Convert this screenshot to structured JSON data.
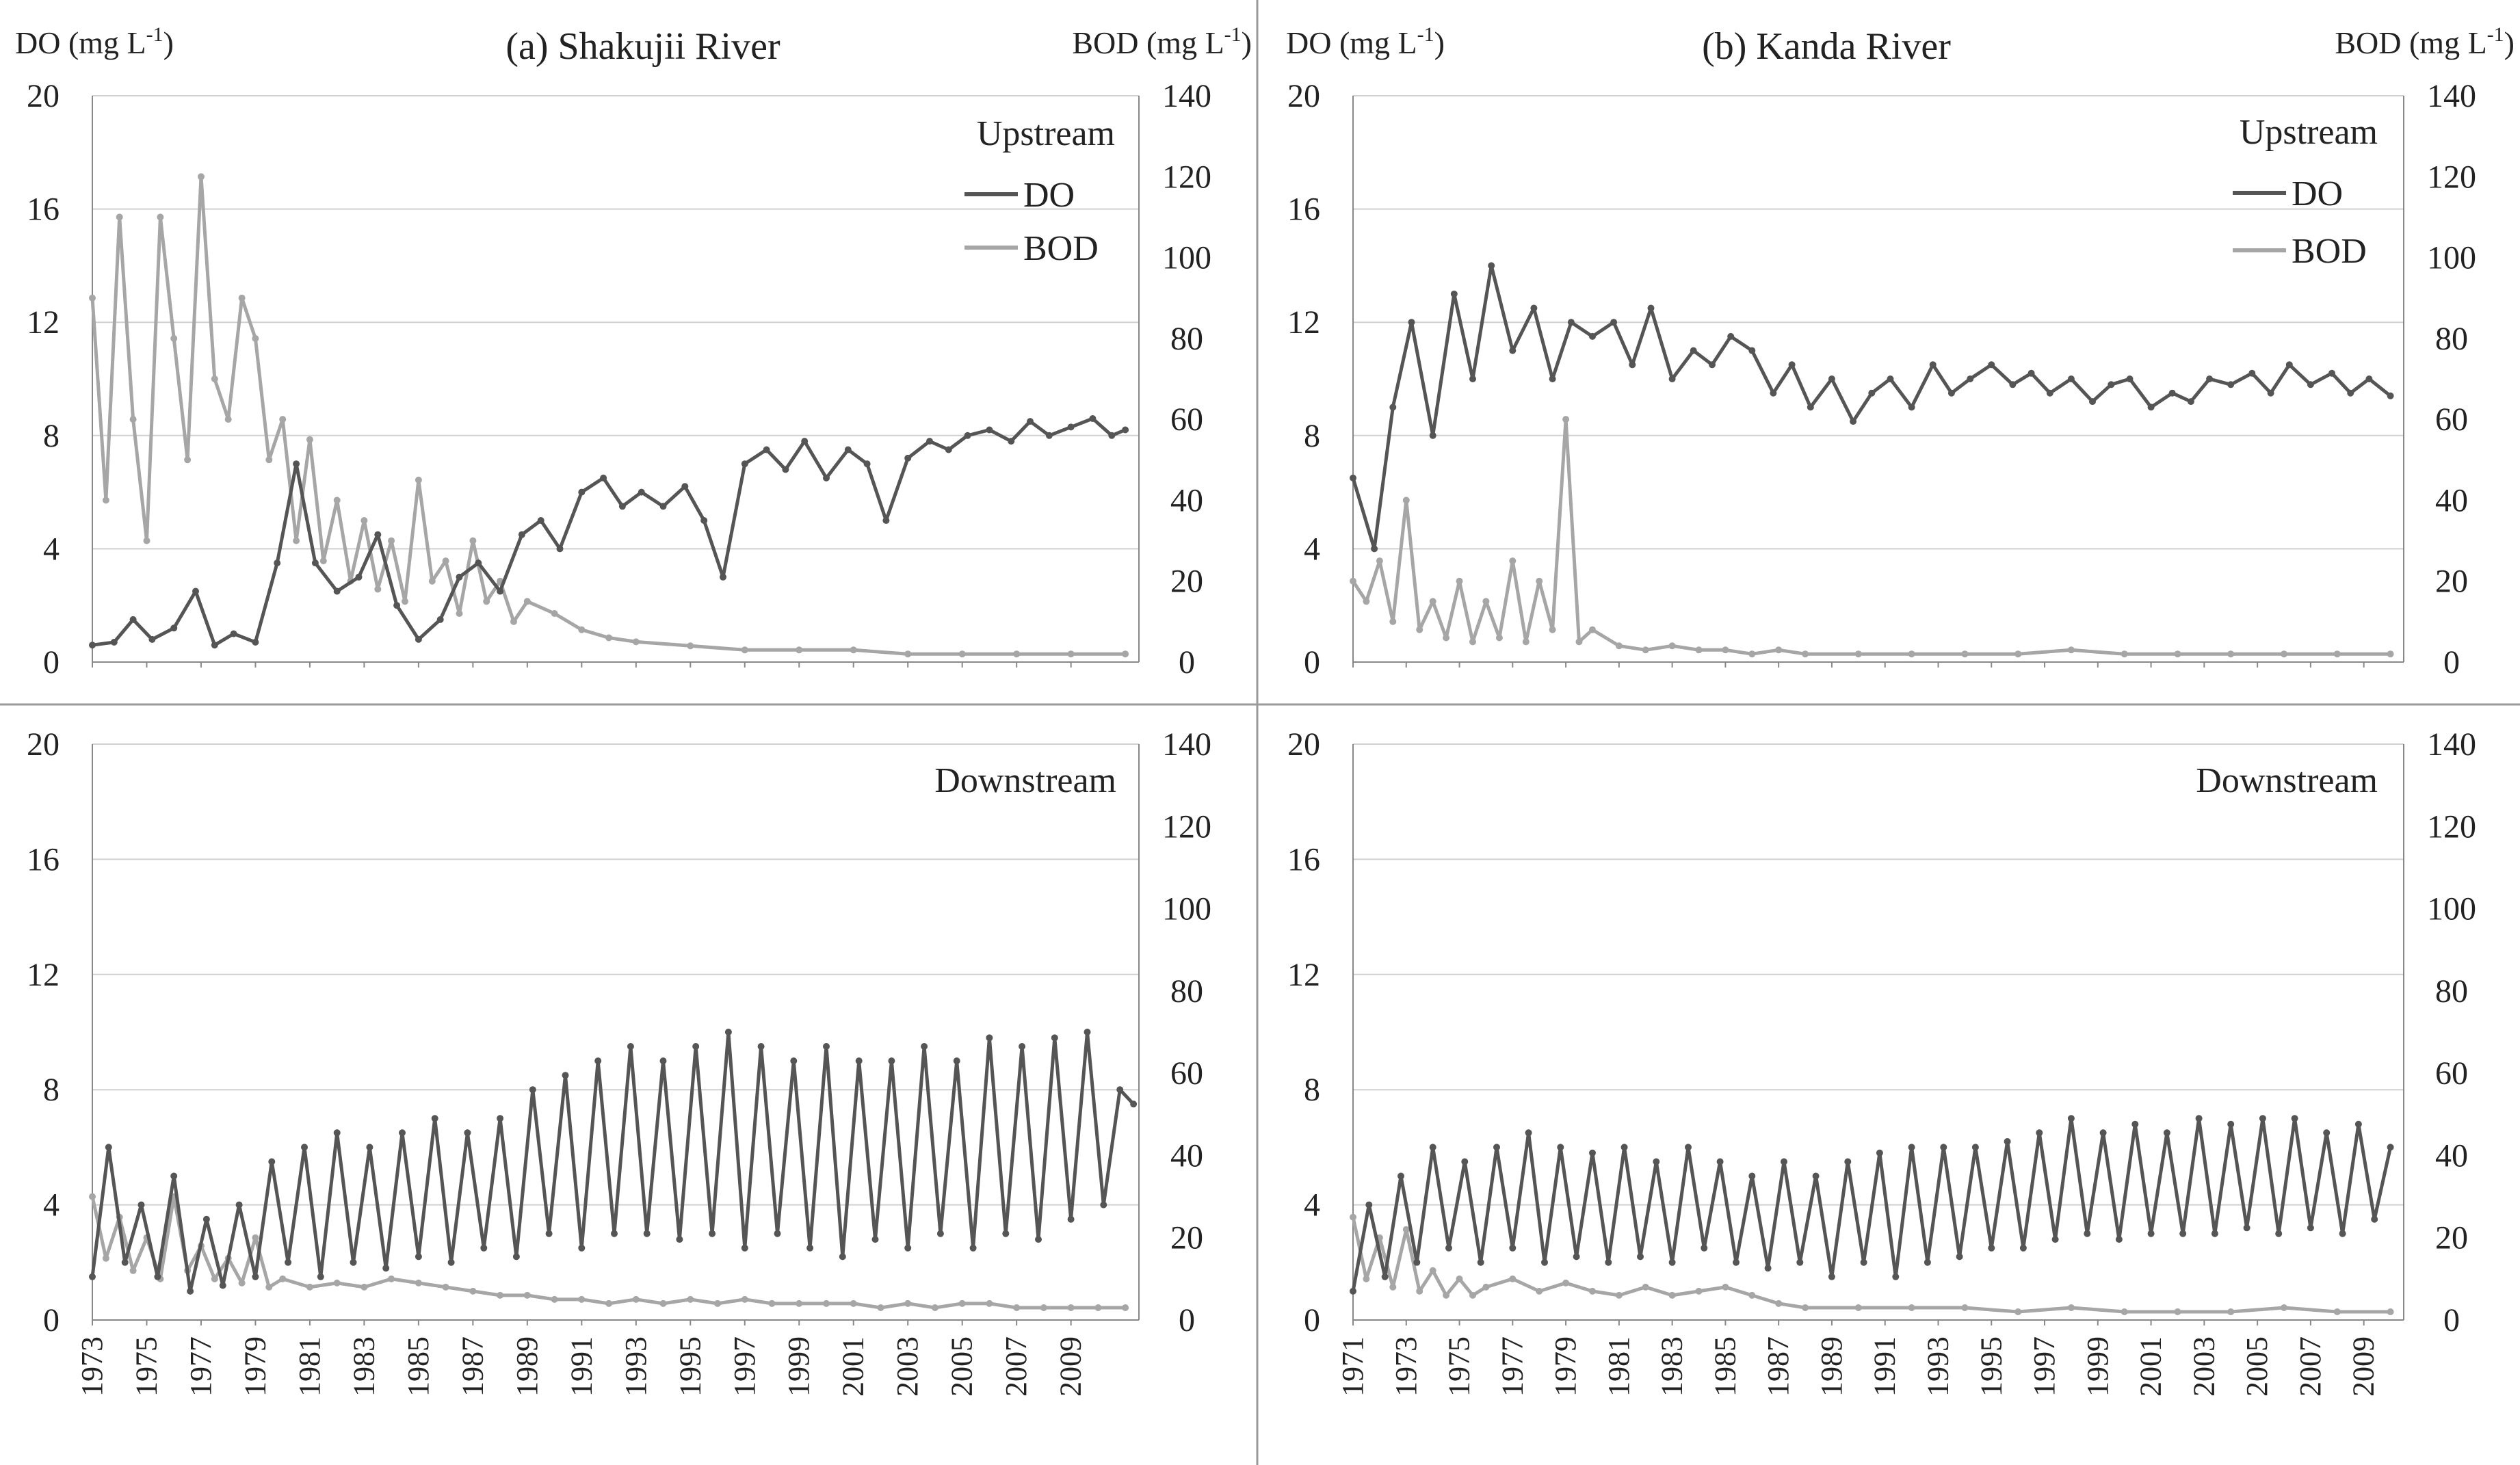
{
  "colors": {
    "do": "#555555",
    "bod": "#a6a6a6",
    "grid": "#d0d0d0",
    "axis": "#888888",
    "divider": "#9a9a9a"
  },
  "chart_data": [
    {
      "type": "line",
      "id": "a-up",
      "title": "(a) Shakujii River",
      "ylabel_left": "DO (mg L-1)",
      "ylabel_left_main": "DO  (mg L",
      "ylabel_left_sup": "-1",
      "ylabel_left_end": ")",
      "ylabel_right": "BOD (mg L-1)",
      "ylabel_right_main": "BOD  (mg L",
      "ylabel_right_sup": "-1",
      "ylabel_right_end": ")",
      "panel_label": "Upstream",
      "legend": [
        "DO",
        "BOD"
      ],
      "ylim": [
        0,
        20
      ],
      "yticks": [
        0,
        4,
        8,
        12,
        16,
        20
      ],
      "ylim2": [
        0,
        140
      ],
      "yticks2": [
        0,
        20,
        40,
        60,
        80,
        100,
        120,
        140
      ],
      "xlim": [
        1973,
        2011.5
      ],
      "xticks": [
        "1973",
        "1975",
        "1977",
        "1979",
        "1981",
        "1983",
        "1985",
        "1987",
        "1989",
        "1991",
        "1993",
        "1995",
        "1997",
        "1999",
        "2001",
        "2003",
        "2005",
        "2007",
        "2009"
      ],
      "series": [
        {
          "name": "DO",
          "axis": "left",
          "x": [
            1973.0,
            1973.8,
            1974.5,
            1975.2,
            1976.0,
            1976.8,
            1977.5,
            1978.2,
            1979.0,
            1979.8,
            1980.5,
            1981.2,
            1982.0,
            1982.8,
            1983.5,
            1984.2,
            1985.0,
            1985.8,
            1986.5,
            1987.2,
            1988.0,
            1988.8,
            1989.5,
            1990.2,
            1991.0,
            1991.8,
            1992.5,
            1993.2,
            1994.0,
            1994.8,
            1995.5,
            1996.2,
            1997.0,
            1997.8,
            1998.5,
            1999.2,
            2000.0,
            2000.8,
            2001.5,
            2002.2,
            2003.0,
            2003.8,
            2004.5,
            2005.2,
            2006.0,
            2006.8,
            2007.5,
            2008.2,
            2009.0,
            2009.8,
            2010.5,
            2011.0
          ],
          "y": [
            0.6,
            0.7,
            1.5,
            0.8,
            1.2,
            2.5,
            0.6,
            1.0,
            0.7,
            3.5,
            7.0,
            3.5,
            2.5,
            3.0,
            4.5,
            2.0,
            0.8,
            1.5,
            3.0,
            3.5,
            2.5,
            4.5,
            5.0,
            4.0,
            6.0,
            6.5,
            5.5,
            6.0,
            5.5,
            6.2,
            5.0,
            3.0,
            7.0,
            7.5,
            6.8,
            7.8,
            6.5,
            7.5,
            7.0,
            5.0,
            7.2,
            7.8,
            7.5,
            8.0,
            8.2,
            7.8,
            8.5,
            8.0,
            8.3,
            8.6,
            8.0,
            8.2
          ]
        },
        {
          "name": "BOD",
          "axis": "right",
          "x": [
            1973.0,
            1973.5,
            1974.0,
            1974.5,
            1975.0,
            1975.5,
            1976.0,
            1976.5,
            1977.0,
            1977.5,
            1978.0,
            1978.5,
            1979.0,
            1979.5,
            1980.0,
            1980.5,
            1981.0,
            1981.5,
            1982.0,
            1982.5,
            1983.0,
            1983.5,
            1984.0,
            1984.5,
            1985.0,
            1985.5,
            1986.0,
            1986.5,
            1987.0,
            1987.5,
            1988.0,
            1988.5,
            1989.0,
            1990.0,
            1991.0,
            1992.0,
            1993.0,
            1995.0,
            1997.0,
            1999.0,
            2001.0,
            2003.0,
            2005.0,
            2007.0,
            2009.0,
            2011.0
          ],
          "y": [
            90,
            40,
            110,
            60,
            30,
            110,
            80,
            50,
            120,
            70,
            60,
            90,
            80,
            50,
            60,
            30,
            55,
            25,
            40,
            20,
            35,
            18,
            30,
            15,
            45,
            20,
            25,
            12,
            30,
            15,
            20,
            10,
            15,
            12,
            8,
            6,
            5,
            4,
            3,
            3,
            3,
            2,
            2,
            2,
            2,
            2
          ]
        }
      ]
    },
    {
      "type": "line",
      "id": "b-up",
      "title": "(b) Kanda River",
      "ylabel_left": "DO (mg L-1)",
      "ylabel_left_main": "DO  (mg L",
      "ylabel_left_sup": "-1",
      "ylabel_left_end": ")",
      "ylabel_right": "BOD (mg L-1)",
      "ylabel_right_main": "BOD  (mg L",
      "ylabel_right_sup": "-1",
      "ylabel_right_end": ")",
      "panel_label": "Upstream",
      "legend": [
        "DO",
        "BOD"
      ],
      "ylim": [
        0,
        20
      ],
      "yticks": [
        0,
        4,
        8,
        12,
        16,
        20
      ],
      "ylim2": [
        0,
        140
      ],
      "yticks2": [
        0,
        20,
        40,
        60,
        80,
        100,
        120,
        140
      ],
      "xlim": [
        1971,
        2010.5
      ],
      "xticks": [
        "1971",
        "1973",
        "1975",
        "1977",
        "1979",
        "1981",
        "1983",
        "1985",
        "1987",
        "1989",
        "1991",
        "1993",
        "1995",
        "1997",
        "1999",
        "2001",
        "2003",
        "2005",
        "2007",
        "2009"
      ],
      "series": [
        {
          "name": "DO",
          "axis": "left",
          "x": [
            1971.0,
            1971.8,
            1972.5,
            1973.2,
            1974.0,
            1974.8,
            1975.5,
            1976.2,
            1977.0,
            1977.8,
            1978.5,
            1979.2,
            1980.0,
            1980.8,
            1981.5,
            1982.2,
            1983.0,
            1983.8,
            1984.5,
            1985.2,
            1986.0,
            1986.8,
            1987.5,
            1988.2,
            1989.0,
            1989.8,
            1990.5,
            1991.2,
            1992.0,
            1992.8,
            1993.5,
            1994.2,
            1995.0,
            1995.8,
            1996.5,
            1997.2,
            1998.0,
            1998.8,
            1999.5,
            2000.2,
            2001.0,
            2001.8,
            2002.5,
            2003.2,
            2004.0,
            2004.8,
            2005.5,
            2006.2,
            2007.0,
            2007.8,
            2008.5,
            2009.2,
            2010.0
          ],
          "y": [
            6.5,
            4.0,
            9.0,
            12.0,
            8.0,
            13.0,
            10.0,
            14.0,
            11.0,
            12.5,
            10.0,
            12.0,
            11.5,
            12.0,
            10.5,
            12.5,
            10.0,
            11.0,
            10.5,
            11.5,
            11.0,
            9.5,
            10.5,
            9.0,
            10.0,
            8.5,
            9.5,
            10.0,
            9.0,
            10.5,
            9.5,
            10.0,
            10.5,
            9.8,
            10.2,
            9.5,
            10.0,
            9.2,
            9.8,
            10.0,
            9.0,
            9.5,
            9.2,
            10.0,
            9.8,
            10.2,
            9.5,
            10.5,
            9.8,
            10.2,
            9.5,
            10.0,
            9.4
          ]
        },
        {
          "name": "BOD",
          "axis": "right",
          "x": [
            1971.0,
            1971.5,
            1972.0,
            1972.5,
            1973.0,
            1973.5,
            1974.0,
            1974.5,
            1975.0,
            1975.5,
            1976.0,
            1976.5,
            1977.0,
            1977.5,
            1978.0,
            1978.5,
            1979.0,
            1979.5,
            1980.0,
            1981.0,
            1982.0,
            1983.0,
            1984.0,
            1985.0,
            1986.0,
            1987.0,
            1988.0,
            1990.0,
            1992.0,
            1994.0,
            1996.0,
            1998.0,
            2000.0,
            2002.0,
            2004.0,
            2006.0,
            2008.0,
            2010.0
          ],
          "y": [
            20,
            15,
            25,
            10,
            40,
            8,
            15,
            6,
            20,
            5,
            15,
            6,
            25,
            5,
            20,
            8,
            60,
            5,
            8,
            4,
            3,
            4,
            3,
            3,
            2,
            3,
            2,
            2,
            2,
            2,
            2,
            3,
            2,
            2,
            2,
            2,
            2,
            2
          ]
        }
      ]
    },
    {
      "type": "line",
      "id": "a-down",
      "title": "",
      "panel_label": "Downstream",
      "ylim": [
        0,
        20
      ],
      "yticks": [
        0,
        4,
        8,
        12,
        16,
        20
      ],
      "ylim2": [
        0,
        140
      ],
      "yticks2": [
        0,
        20,
        40,
        60,
        80,
        100,
        120,
        140
      ],
      "xlim": [
        1973,
        2011.5
      ],
      "xticks": [
        "1973",
        "1975",
        "1977",
        "1979",
        "1981",
        "1983",
        "1985",
        "1987",
        "1989",
        "1991",
        "1993",
        "1995",
        "1997",
        "1999",
        "2001",
        "2003",
        "2005",
        "2007",
        "2009"
      ],
      "series": [
        {
          "name": "DO",
          "axis": "left",
          "x": [
            1973.0,
            1973.6,
            1974.2,
            1974.8,
            1975.4,
            1976.0,
            1976.6,
            1977.2,
            1977.8,
            1978.4,
            1979.0,
            1979.6,
            1980.2,
            1980.8,
            1981.4,
            1982.0,
            1982.6,
            1983.2,
            1983.8,
            1984.4,
            1985.0,
            1985.6,
            1986.2,
            1986.8,
            1987.4,
            1988.0,
            1988.6,
            1989.2,
            1989.8,
            1990.4,
            1991.0,
            1991.6,
            1992.2,
            1992.8,
            1993.4,
            1994.0,
            1994.6,
            1995.2,
            1995.8,
            1996.4,
            1997.0,
            1997.6,
            1998.2,
            1998.8,
            1999.4,
            2000.0,
            2000.6,
            2001.2,
            2001.8,
            2002.4,
            2003.0,
            2003.6,
            2004.2,
            2004.8,
            2005.4,
            2006.0,
            2006.6,
            2007.2,
            2007.8,
            2008.4,
            2009.0,
            2009.6,
            2010.2,
            2010.8,
            2011.3
          ],
          "y": [
            1.5,
            6.0,
            2.0,
            4.0,
            1.5,
            5.0,
            1.0,
            3.5,
            1.2,
            4.0,
            1.5,
            5.5,
            2.0,
            6.0,
            1.5,
            6.5,
            2.0,
            6.0,
            1.8,
            6.5,
            2.2,
            7.0,
            2.0,
            6.5,
            2.5,
            7.0,
            2.2,
            8.0,
            3.0,
            8.5,
            2.5,
            9.0,
            3.0,
            9.5,
            3.0,
            9.0,
            2.8,
            9.5,
            3.0,
            10.0,
            2.5,
            9.5,
            3.0,
            9.0,
            2.5,
            9.5,
            2.2,
            9.0,
            2.8,
            9.0,
            2.5,
            9.5,
            3.0,
            9.0,
            2.5,
            9.8,
            3.0,
            9.5,
            2.8,
            9.8,
            3.5,
            10.0,
            4.0,
            8.0,
            7.5
          ]
        },
        {
          "name": "BOD",
          "axis": "right",
          "x": [
            1973.0,
            1973.5,
            1974.0,
            1974.5,
            1975.0,
            1975.5,
            1976.0,
            1976.5,
            1977.0,
            1977.5,
            1978.0,
            1978.5,
            1979.0,
            1979.5,
            1980.0,
            1981.0,
            1982.0,
            1983.0,
            1984.0,
            1985.0,
            1986.0,
            1987.0,
            1988.0,
            1989.0,
            1990.0,
            1991.0,
            1992.0,
            1993.0,
            1994.0,
            1995.0,
            1996.0,
            1997.0,
            1998.0,
            1999.0,
            2000.0,
            2001.0,
            2002.0,
            2003.0,
            2004.0,
            2005.0,
            2006.0,
            2007.0,
            2008.0,
            2009.0,
            2010.0,
            2011.0
          ],
          "y": [
            30,
            15,
            25,
            12,
            20,
            10,
            30,
            12,
            18,
            10,
            15,
            9,
            20,
            8,
            10,
            8,
            9,
            8,
            10,
            9,
            8,
            7,
            6,
            6,
            5,
            5,
            4,
            5,
            4,
            5,
            4,
            5,
            4,
            4,
            4,
            4,
            3,
            4,
            3,
            4,
            4,
            3,
            3,
            3,
            3,
            3
          ]
        }
      ]
    },
    {
      "type": "line",
      "id": "b-down",
      "title": "",
      "panel_label": "Downstream",
      "ylim": [
        0,
        20
      ],
      "yticks": [
        0,
        4,
        8,
        12,
        16,
        20
      ],
      "ylim2": [
        0,
        140
      ],
      "yticks2": [
        0,
        20,
        40,
        60,
        80,
        100,
        120,
        140
      ],
      "xlim": [
        1971,
        2010.5
      ],
      "xticks": [
        "1971",
        "1973",
        "1975",
        "1977",
        "1979",
        "1981",
        "1983",
        "1985",
        "1987",
        "1989",
        "1991",
        "1993",
        "1995",
        "1997",
        "1999",
        "2001",
        "2003",
        "2005",
        "2007",
        "2009"
      ],
      "series": [
        {
          "name": "DO",
          "axis": "left",
          "x": [
            1971.0,
            1971.6,
            1972.2,
            1972.8,
            1973.4,
            1974.0,
            1974.6,
            1975.2,
            1975.8,
            1976.4,
            1977.0,
            1977.6,
            1978.2,
            1978.8,
            1979.4,
            1980.0,
            1980.6,
            1981.2,
            1981.8,
            1982.4,
            1983.0,
            1983.6,
            1984.2,
            1984.8,
            1985.4,
            1986.0,
            1986.6,
            1987.2,
            1987.8,
            1988.4,
            1989.0,
            1989.6,
            1990.2,
            1990.8,
            1991.4,
            1992.0,
            1992.6,
            1993.2,
            1993.8,
            1994.4,
            1995.0,
            1995.6,
            1996.2,
            1996.8,
            1997.4,
            1998.0,
            1998.6,
            1999.2,
            1999.8,
            2000.4,
            2001.0,
            2001.6,
            2002.2,
            2002.8,
            2003.4,
            2004.0,
            2004.6,
            2005.2,
            2005.8,
            2006.4,
            2007.0,
            2007.6,
            2008.2,
            2008.8,
            2009.4,
            2010.0
          ],
          "y": [
            1.0,
            4.0,
            1.5,
            5.0,
            2.0,
            6.0,
            2.5,
            5.5,
            2.0,
            6.0,
            2.5,
            6.5,
            2.0,
            6.0,
            2.2,
            5.8,
            2.0,
            6.0,
            2.2,
            5.5,
            2.0,
            6.0,
            2.5,
            5.5,
            2.0,
            5.0,
            1.8,
            5.5,
            2.0,
            5.0,
            1.5,
            5.5,
            2.0,
            5.8,
            1.5,
            6.0,
            2.0,
            6.0,
            2.2,
            6.0,
            2.5,
            6.2,
            2.5,
            6.5,
            2.8,
            7.0,
            3.0,
            6.5,
            2.8,
            6.8,
            3.0,
            6.5,
            3.0,
            7.0,
            3.0,
            6.8,
            3.2,
            7.0,
            3.0,
            7.0,
            3.2,
            6.5,
            3.0,
            6.8,
            3.5,
            6.0
          ]
        },
        {
          "name": "BOD",
          "axis": "right",
          "x": [
            1971.0,
            1971.5,
            1972.0,
            1972.5,
            1973.0,
            1973.5,
            1974.0,
            1974.5,
            1975.0,
            1975.5,
            1976.0,
            1977.0,
            1978.0,
            1979.0,
            1980.0,
            1981.0,
            1982.0,
            1983.0,
            1984.0,
            1985.0,
            1986.0,
            1987.0,
            1988.0,
            1990.0,
            1992.0,
            1994.0,
            1996.0,
            1998.0,
            2000.0,
            2002.0,
            2004.0,
            2006.0,
            2008.0,
            2010.0
          ],
          "y": [
            25,
            10,
            20,
            8,
            22,
            7,
            12,
            6,
            10,
            6,
            8,
            10,
            7,
            9,
            7,
            6,
            8,
            6,
            7,
            8,
            6,
            4,
            3,
            3,
            3,
            3,
            2,
            3,
            2,
            2,
            2,
            3,
            2,
            2
          ]
        }
      ]
    }
  ]
}
